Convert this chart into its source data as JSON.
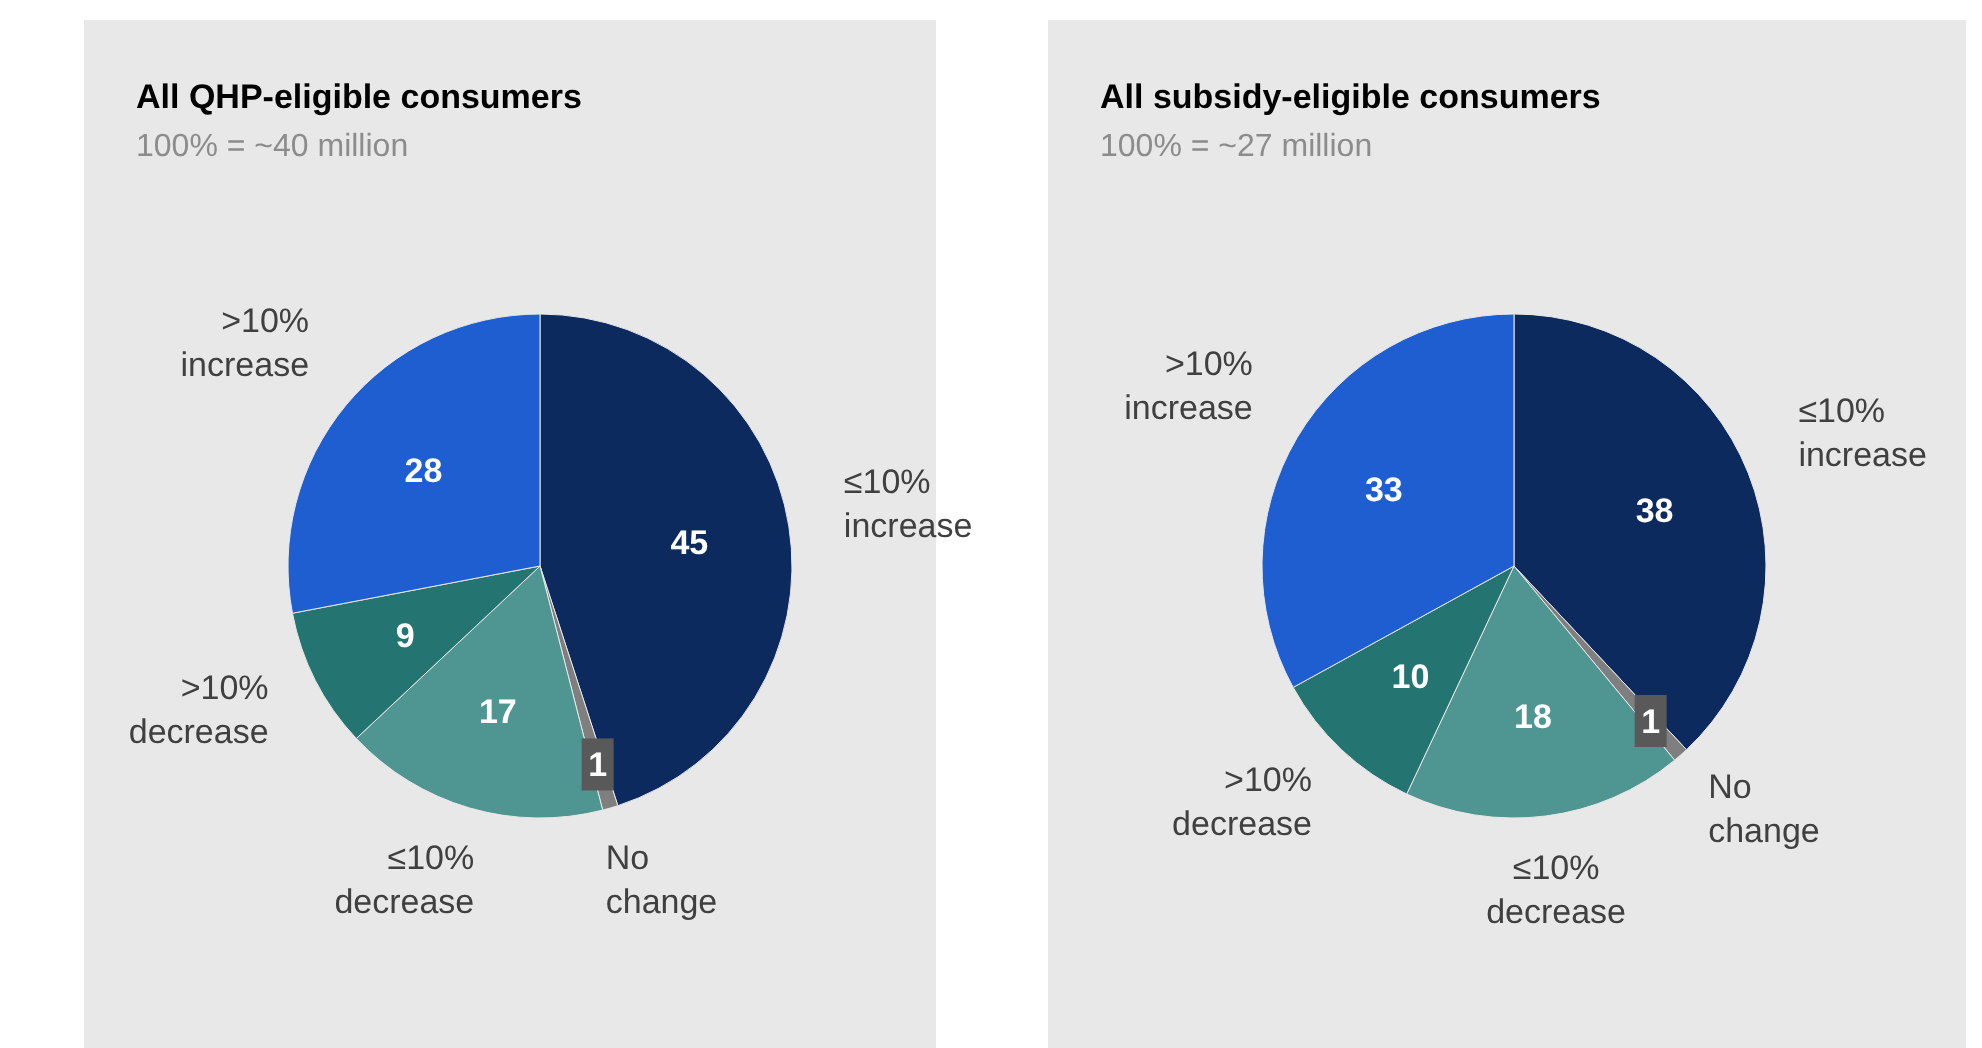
{
  "chart_data": [
    {
      "type": "pie",
      "title": "All QHP-eligible consumers",
      "subtitle": "100% = ~40 million",
      "categories": [
        "≤10% increase",
        "No change",
        "≤10% decrease",
        ">10% decrease",
        ">10% increase"
      ],
      "values": [
        45,
        1,
        17,
        9,
        28
      ],
      "colors": [
        "#0c2a5e",
        "#7f7f7f",
        "#4f9591",
        "#247472",
        "#1e5ed0"
      ],
      "data_labels": true
    },
    {
      "type": "pie",
      "title": "All subsidy-eligible consumers",
      "subtitle": "100% = ~27 million",
      "categories": [
        "≤10% increase",
        "No change",
        "≤10% decrease",
        ">10% decrease",
        ">10% increase"
      ],
      "values": [
        38,
        1,
        18,
        10,
        33
      ],
      "colors": [
        "#0c2a5e",
        "#7f7f7f",
        "#4f9591",
        "#247472",
        "#1e5ed0"
      ],
      "data_labels": true
    }
  ]
}
